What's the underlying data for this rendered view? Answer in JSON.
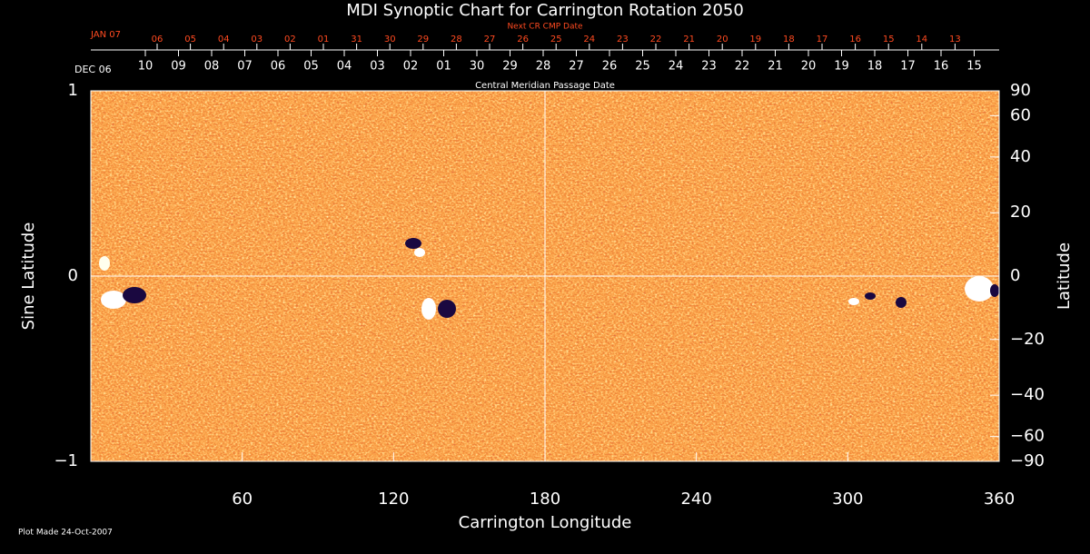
{
  "chart_data": {
    "type": "synoptic-map",
    "title": "MDI Synoptic Chart for Carrington Rotation 2050",
    "xlabel": "Carrington Longitude",
    "xlim": [
      0,
      360
    ],
    "xticks": [
      60,
      120,
      180,
      240,
      300,
      360
    ],
    "ylabel": "Sine Latitude",
    "ylim": [
      -1,
      1
    ],
    "yticks": [
      {
        "value": -1,
        "label": "−1"
      },
      0,
      1
    ],
    "y2label": "Latitude",
    "y2scale": "sine",
    "y2lim": [
      -90,
      90
    ],
    "y2ticks": [
      {
        "value": -90,
        "label": "−90"
      },
      {
        "value": -60,
        "label": "−60"
      },
      {
        "value": -40,
        "label": "−40"
      },
      {
        "value": -20,
        "label": "−20"
      },
      0,
      20,
      40,
      60,
      90
    ],
    "crosshair": {
      "x": 180,
      "y": 0
    },
    "cmp_dates": {
      "label": "Central Meridian Passage Date",
      "start_label": "DEC 06",
      "categories": [
        "10",
        "09",
        "08",
        "07",
        "06",
        "05",
        "04",
        "03",
        "02",
        "01",
        "30",
        "29",
        "28",
        "27",
        "26",
        "25",
        "24",
        "23",
        "22",
        "21",
        "20",
        "19",
        "18",
        "17",
        "16",
        "15"
      ],
      "color": "#ffffff"
    },
    "next_cmp_dates": {
      "label": "Next CR CMP Date",
      "start_label": "JAN 07",
      "categories": [
        "06",
        "05",
        "04",
        "03",
        "02",
        "01",
        "31",
        "30",
        "29",
        "28",
        "27",
        "26",
        "25",
        "24",
        "23",
        "22",
        "21",
        "20",
        "19",
        "18",
        "17",
        "16",
        "15",
        "14",
        "13"
      ],
      "color": "#ff4a20"
    },
    "footnote": "Plot Made 24-Oct-2007"
  }
}
